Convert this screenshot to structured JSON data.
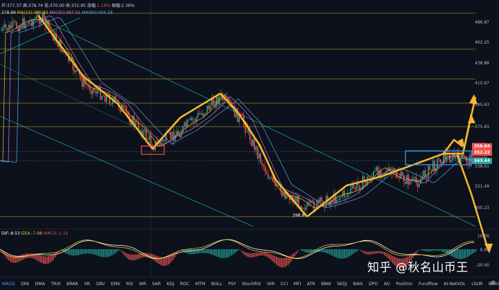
{
  "header": {
    "ohlc": {
      "open": "开:377.37",
      "high": "高:378.74",
      "low": "低:370.00",
      "close": "收:372.95",
      "change_label": "涨幅",
      "change": "-1.19%",
      "amplitude": "振幅:2.36%"
    },
    "ma_line": {
      "ma5": "378.89",
      "ma15": "MA(15):380.95",
      "ma30": "MA(30):397.01",
      "ma60": "MA(60):404.18"
    }
  },
  "price_axis": {
    "ticks": [
      "486.87",
      "462.25",
      "438.88",
      "415.67",
      "395.63",
      "375.63",
      "338.61",
      "321.49",
      "305.23"
    ],
    "tags": {
      "red_top": "356.64",
      "red_mid": "352.22",
      "green": "343.44"
    }
  },
  "annotations": {
    "low_label": "298.8"
  },
  "macd": {
    "dif": "DIF:-8.53",
    "dea": "DEA:-7.98",
    "macd": "MACD:-1.10",
    "ticks": [
      "10.00",
      "0.00",
      "-20.00"
    ]
  },
  "toolbar": {
    "items": [
      "MACD",
      "DMI",
      "DMA",
      "TRIX",
      "BRAR",
      "VR",
      "OBV",
      "EMV",
      "RSI",
      "WR",
      "SAR",
      "KDJ",
      "ROC",
      "MTM",
      "BOLL",
      "PSY",
      "StochRSI",
      "SMI",
      "CCI",
      "MFI",
      "ATR",
      "BBW",
      "SKDJ",
      "BIAS",
      "DPO",
      "AO",
      "Position",
      "Fundflow",
      "AI-NetVOL",
      "LSUR",
      "BASIS"
    ],
    "active": "MACD"
  },
  "watermark": "知乎 @秋名山币王",
  "colors": {
    "background": "#0c111c",
    "up": "#26a69a",
    "down": "#ef5350",
    "arrows": "#f5b82e",
    "level_lines": "#b9a431"
  }
}
